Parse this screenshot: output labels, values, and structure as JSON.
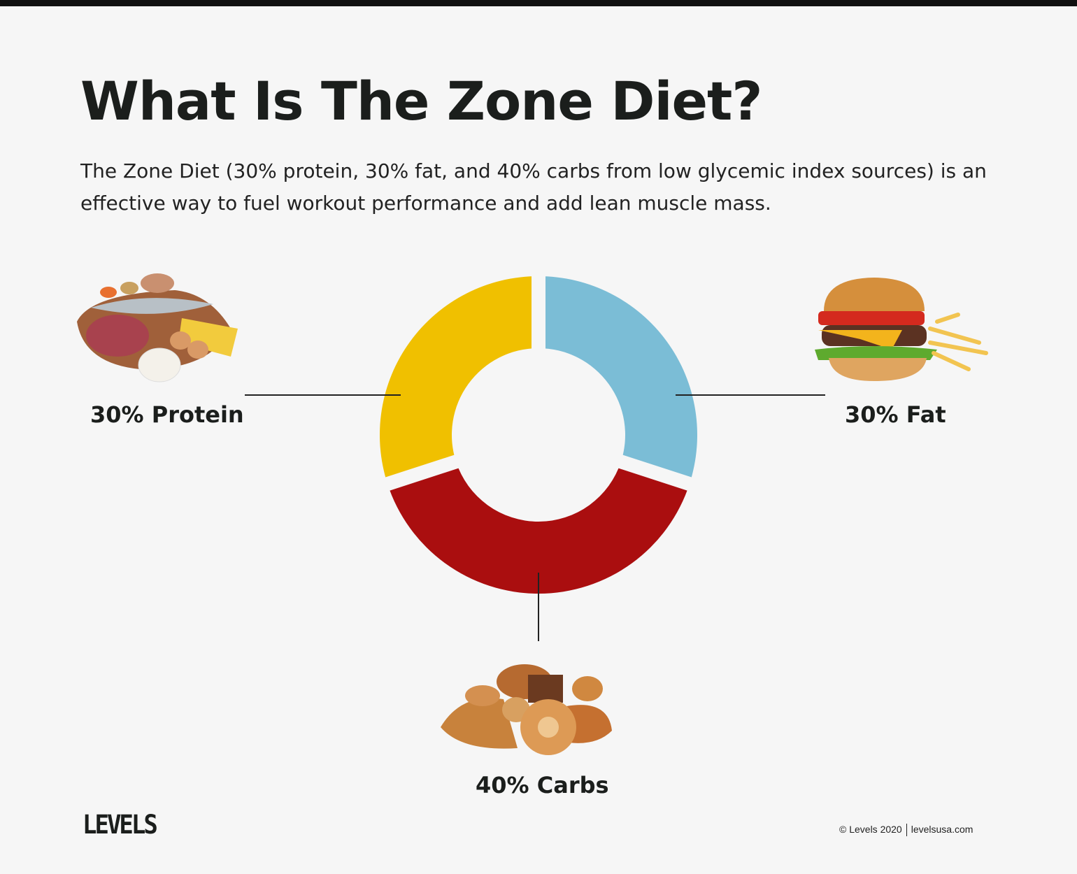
{
  "header": {
    "title": "What Is The Zone Diet?",
    "intro": "The Zone Diet (30% protein, 30% fat, and 40% carbs from low glycemic index sources) is an effective way to fuel workout performance and add lean muscle mass."
  },
  "chart_data": {
    "type": "pie",
    "variant": "donut",
    "slices": [
      {
        "name": "Fat",
        "value": 30,
        "label": "30% Fat",
        "color": "#7bbdd6"
      },
      {
        "name": "Carbs",
        "value": 40,
        "label": "40% Carbs",
        "color": "#aa0e0f"
      },
      {
        "name": "Protein",
        "value": 30,
        "label": "30% Protein",
        "color": "#f0c000"
      }
    ]
  },
  "footer": {
    "logo": "LEVELS",
    "copyright": "© Levels 2020",
    "site": "levelsusa.com"
  }
}
